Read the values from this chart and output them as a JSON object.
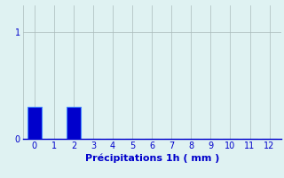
{
  "xlabel": "Précipitations 1h ( mm )",
  "bar_values": [
    0.3,
    0,
    0.3,
    0,
    0,
    0,
    0,
    0,
    0,
    0,
    0,
    0,
    0
  ],
  "bar_positions": [
    0,
    1,
    2,
    3,
    4,
    5,
    6,
    7,
    8,
    9,
    10,
    11,
    12
  ],
  "bar_color": "#0000cc",
  "bar_edge_color": "#4488ff",
  "xlim": [
    -0.6,
    12.6
  ],
  "ylim": [
    0,
    1.25
  ],
  "yticks": [
    0,
    1
  ],
  "xticks": [
    0,
    1,
    2,
    3,
    4,
    5,
    6,
    7,
    8,
    9,
    10,
    11,
    12
  ],
  "background_color": "#dff2f2",
  "grid_color": "#aabbbb",
  "tick_color": "#0000cc",
  "label_color": "#0000cc",
  "bar_width": 0.75,
  "xlabel_fontsize": 8,
  "tick_fontsize": 7
}
